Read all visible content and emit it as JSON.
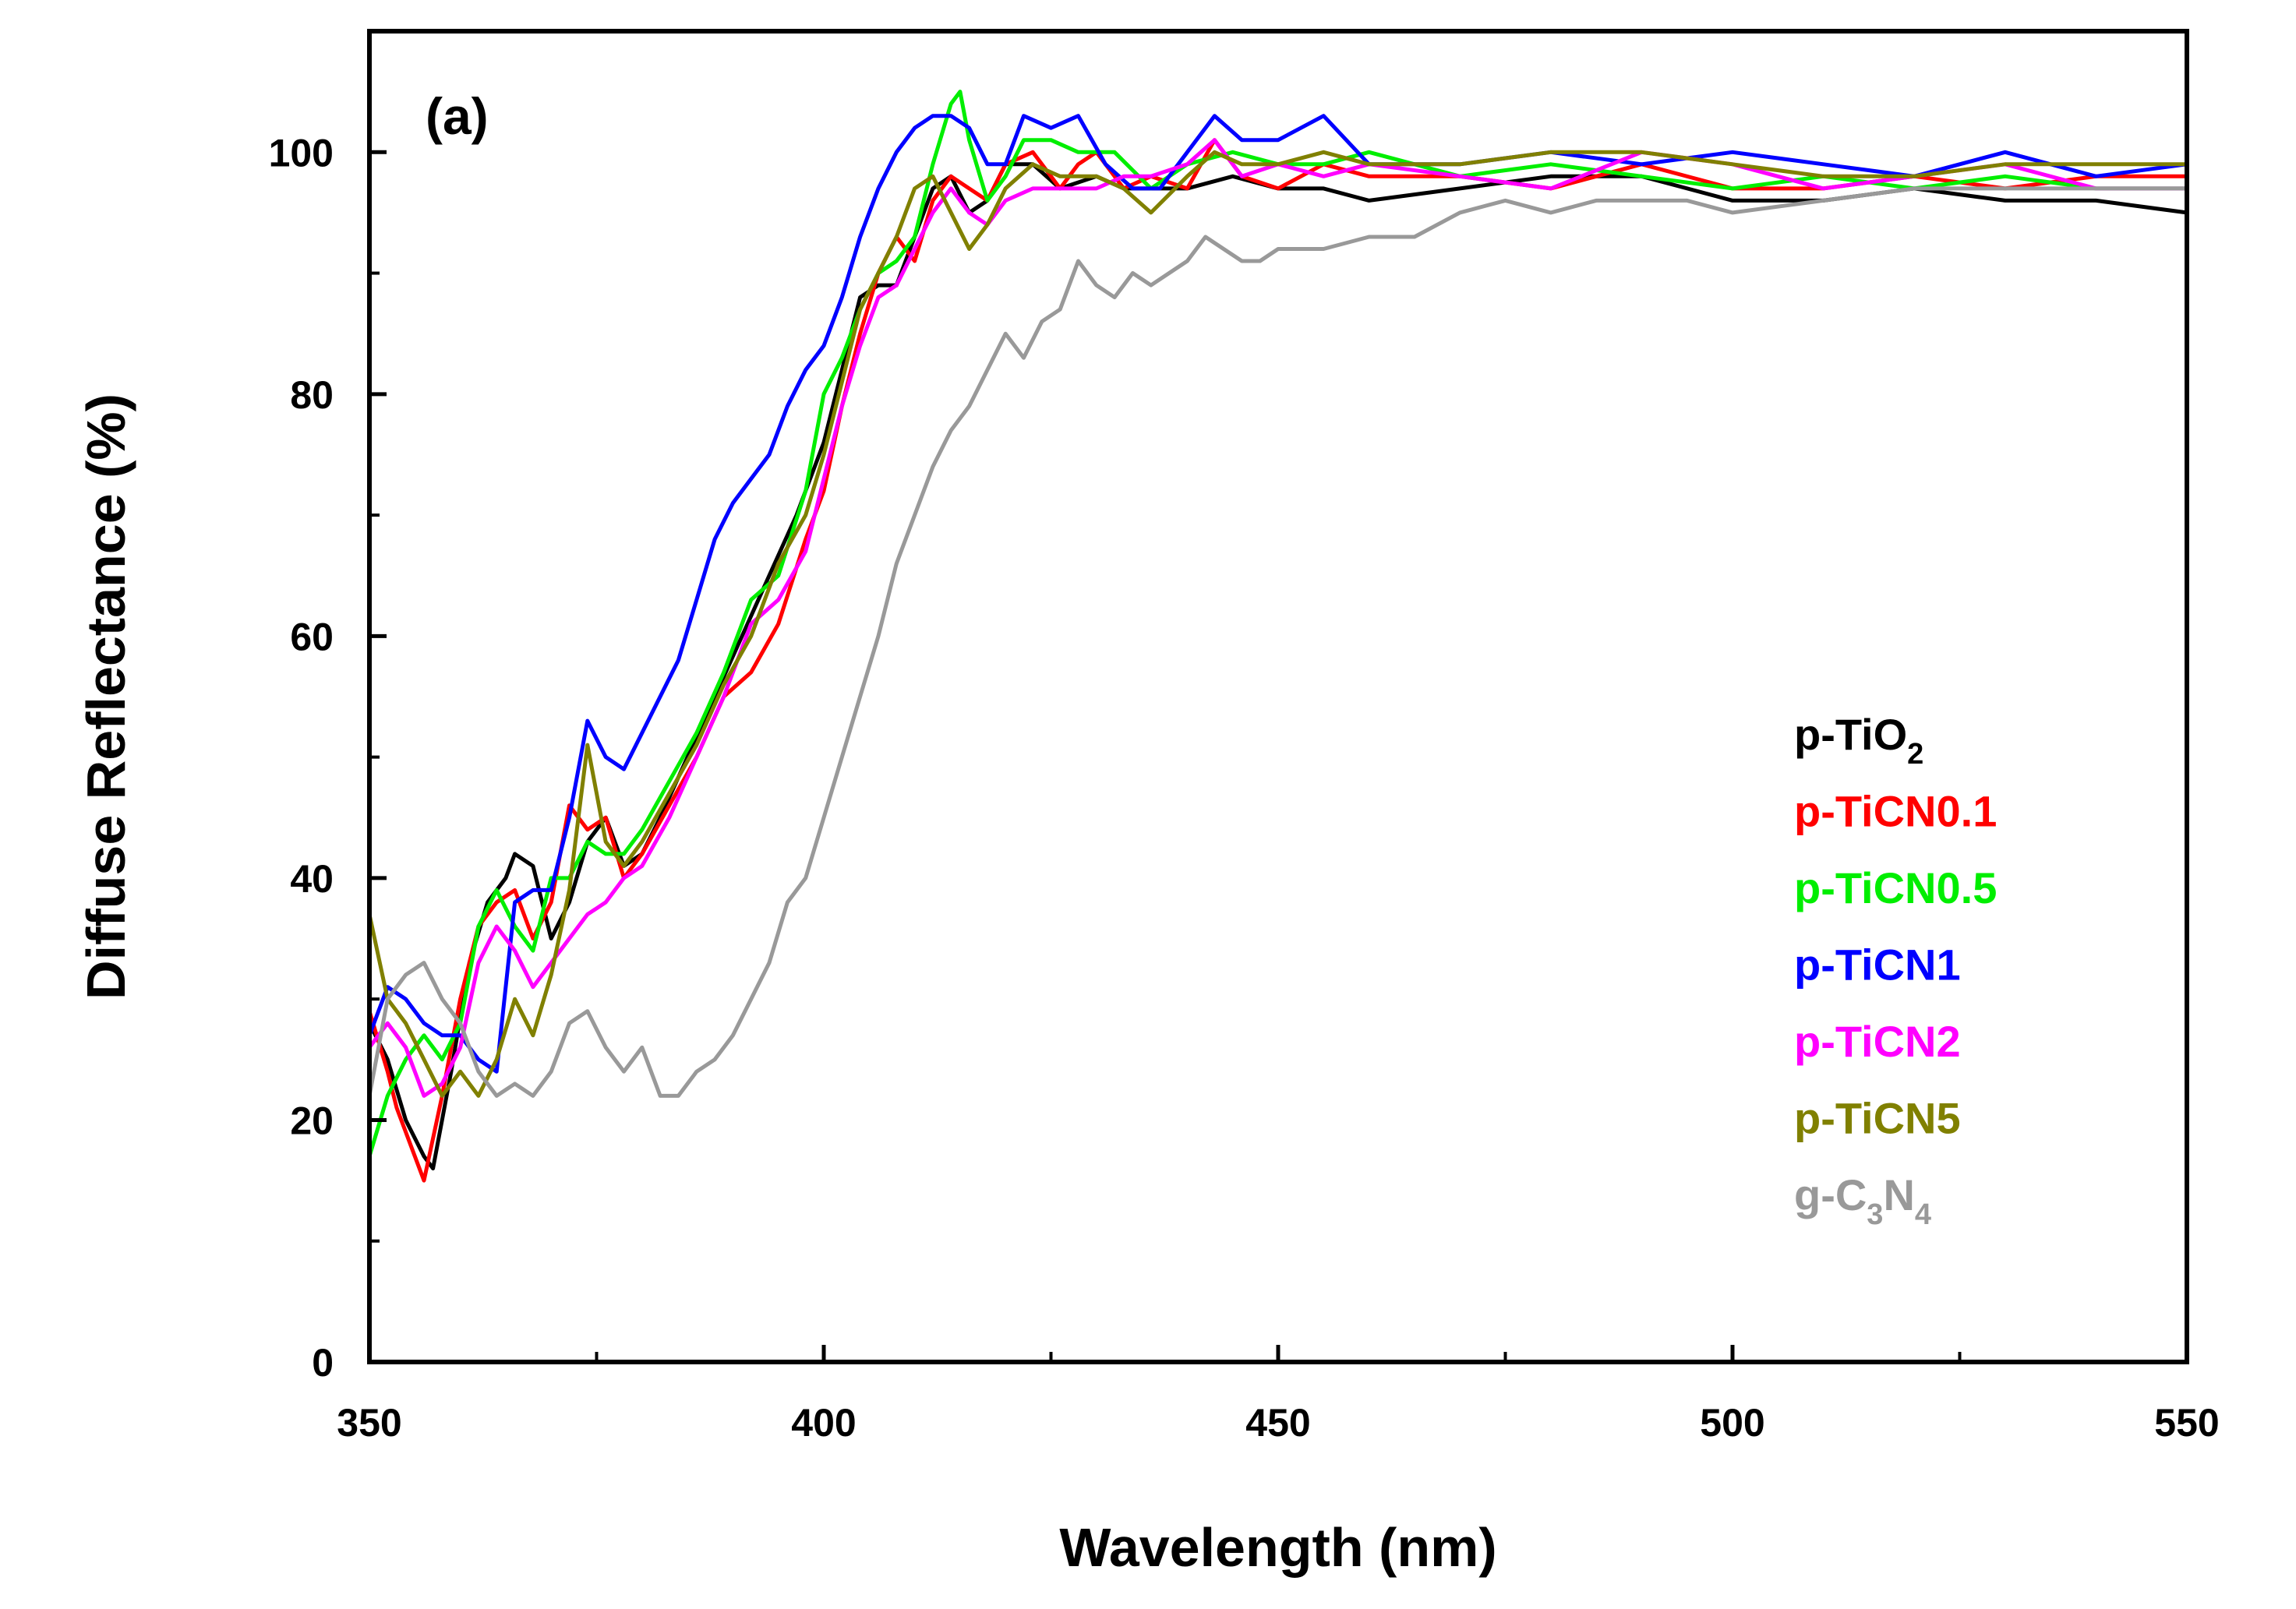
{
  "chart_data": {
    "type": "line",
    "panel_label": "(a)",
    "xlabel": "Wavelength (nm)",
    "ylabel": "Diffuse Reflectance (%)",
    "xlim": [
      350,
      550
    ],
    "ylim": [
      0,
      110
    ],
    "xticks": [
      350,
      400,
      450,
      500,
      550
    ],
    "yticks": [
      0,
      20,
      40,
      60,
      80,
      100
    ],
    "grid": false,
    "legend_position": "right",
    "series": [
      {
        "name": "p-TiO2",
        "legend": {
          "main": "p-TiO",
          "sub": "2",
          "tail": ""
        },
        "color": "#000000",
        "x": [
          350,
          352,
          354,
          356,
          357,
          359,
          361,
          363,
          365,
          366,
          368,
          370,
          372,
          374,
          376,
          378,
          380,
          382,
          385,
          388,
          391,
          394,
          397,
          400,
          402,
          404,
          406,
          408,
          410,
          412,
          414,
          416,
          418,
          420,
          423,
          426,
          430,
          433,
          436,
          440,
          445,
          450,
          455,
          460,
          470,
          480,
          490,
          500,
          510,
          520,
          530,
          540,
          550
        ],
        "y": [
          28,
          25,
          20,
          17,
          16,
          24,
          33,
          38,
          40,
          42,
          41,
          35,
          38,
          43,
          45,
          41,
          42,
          45,
          50,
          55,
          60,
          65,
          70,
          76,
          82,
          88,
          89,
          89,
          93,
          97,
          98,
          95,
          96,
          99,
          99,
          97,
          98,
          97,
          97,
          97,
          98,
          97,
          97,
          96,
          97,
          98,
          98,
          96,
          96,
          97,
          96,
          96,
          95
        ]
      },
      {
        "name": "p-TiCN0.1",
        "legend": {
          "main": "p-TiCN0.1",
          "sub": "",
          "tail": ""
        },
        "color": "#ff0000",
        "x": [
          350,
          352,
          353,
          355,
          356,
          358,
          360,
          362,
          364,
          366,
          368,
          370,
          372,
          374,
          376,
          378,
          380,
          383,
          386,
          389,
          392,
          395,
          398,
          400,
          402,
          404,
          406,
          408,
          410,
          412,
          414,
          416,
          418,
          420,
          423,
          426,
          428,
          430,
          433,
          436,
          440,
          443,
          446,
          450,
          455,
          460,
          470,
          480,
          490,
          500,
          510,
          520,
          530,
          540,
          550
        ],
        "y": [
          29,
          24,
          21,
          17,
          15,
          22,
          30,
          36,
          38,
          39,
          35,
          38,
          46,
          44,
          45,
          40,
          42,
          46,
          50,
          55,
          57,
          61,
          68,
          72,
          79,
          85,
          90,
          93,
          91,
          96,
          98,
          97,
          96,
          99,
          100,
          97,
          99,
          100,
          97,
          98,
          97,
          101,
          98,
          97,
          99,
          98,
          98,
          97,
          99,
          97,
          97,
          98,
          97,
          98,
          98
        ]
      },
      {
        "name": "p-TiCN0.5",
        "legend": {
          "main": "p-TiCN0.5",
          "sub": "",
          "tail": ""
        },
        "color": "#00ee00",
        "x": [
          350,
          352,
          354,
          356,
          358,
          360,
          362,
          364,
          366,
          368,
          370,
          372,
          374,
          376,
          378,
          380,
          383,
          386,
          389,
          392,
          395,
          398,
          400,
          402,
          404,
          406,
          408,
          410,
          412,
          414,
          415,
          416,
          418,
          420,
          422,
          425,
          428,
          432,
          436,
          440,
          445,
          450,
          455,
          460,
          470,
          480,
          490,
          500,
          510,
          520,
          530,
          540,
          550
        ],
        "y": [
          17,
          22,
          25,
          27,
          25,
          28,
          36,
          39,
          36,
          34,
          40,
          40,
          43,
          42,
          42,
          44,
          48,
          52,
          57,
          63,
          65,
          72,
          80,
          83,
          87,
          90,
          91,
          93,
          99,
          104,
          105,
          101,
          96,
          98,
          101,
          101,
          100,
          100,
          97,
          99,
          100,
          99,
          99,
          100,
          98,
          99,
          98,
          97,
          98,
          97,
          98,
          97,
          97
        ]
      },
      {
        "name": "p-TiCN1",
        "legend": {
          "main": "p-TiCN1",
          "sub": "",
          "tail": ""
        },
        "color": "#0000ff",
        "x": [
          350,
          352,
          354,
          356,
          358,
          360,
          362,
          364,
          366,
          368,
          370,
          372,
          374,
          376,
          378,
          380,
          382,
          384,
          386,
          388,
          390,
          392,
          394,
          396,
          398,
          400,
          402,
          404,
          406,
          408,
          410,
          412,
          414,
          416,
          418,
          420,
          422,
          425,
          428,
          431,
          434,
          437,
          440,
          443,
          446,
          450,
          455,
          460,
          470,
          480,
          490,
          500,
          510,
          520,
          530,
          540,
          550
        ],
        "y": [
          27,
          31,
          30,
          28,
          27,
          27,
          25,
          24,
          38,
          39,
          39,
          45,
          53,
          50,
          49,
          52,
          55,
          58,
          63,
          68,
          71,
          73,
          75,
          79,
          82,
          84,
          88,
          93,
          97,
          100,
          102,
          103,
          103,
          102,
          99,
          99,
          103,
          102,
          103,
          99,
          97,
          97,
          100,
          103,
          101,
          101,
          103,
          99,
          99,
          100,
          99,
          100,
          99,
          98,
          100,
          98,
          99
        ]
      },
      {
        "name": "p-TiCN2",
        "legend": {
          "main": "p-TiCN2",
          "sub": "",
          "tail": ""
        },
        "color": "#ff00ff",
        "x": [
          350,
          352,
          354,
          356,
          358,
          360,
          362,
          364,
          366,
          368,
          370,
          372,
          374,
          376,
          378,
          380,
          383,
          386,
          389,
          392,
          395,
          398,
          400,
          402,
          404,
          406,
          408,
          410,
          412,
          414,
          416,
          418,
          420,
          423,
          426,
          430,
          433,
          436,
          440,
          443,
          446,
          450,
          455,
          460,
          470,
          480,
          490,
          500,
          510,
          520,
          530,
          540,
          550
        ],
        "y": [
          26,
          28,
          26,
          22,
          23,
          26,
          33,
          36,
          34,
          31,
          33,
          35,
          37,
          38,
          40,
          41,
          45,
          50,
          55,
          61,
          63,
          67,
          73,
          79,
          84,
          88,
          89,
          92,
          95,
          97,
          95,
          94,
          96,
          97,
          97,
          97,
          98,
          98,
          99,
          101,
          98,
          99,
          98,
          99,
          98,
          97,
          100,
          99,
          97,
          98,
          99,
          97,
          97
        ]
      },
      {
        "name": "p-TiCN5",
        "legend": {
          "main": "p-TiCN5",
          "sub": "",
          "tail": ""
        },
        "color": "#808000",
        "x": [
          350,
          352,
          354,
          356,
          358,
          360,
          362,
          364,
          366,
          368,
          370,
          372,
          374,
          376,
          378,
          380,
          383,
          386,
          389,
          392,
          395,
          398,
          400,
          402,
          404,
          406,
          408,
          410,
          412,
          414,
          416,
          418,
          420,
          423,
          426,
          430,
          433,
          436,
          440,
          443,
          446,
          450,
          455,
          460,
          470,
          480,
          490,
          500,
          510,
          520,
          530,
          540,
          550
        ],
        "y": [
          37,
          30,
          28,
          25,
          22,
          24,
          22,
          25,
          30,
          27,
          32,
          39,
          51,
          43,
          41,
          43,
          47,
          51,
          56,
          60,
          66,
          70,
          75,
          81,
          87,
          90,
          93,
          97,
          98,
          95,
          92,
          94,
          97,
          99,
          98,
          98,
          97,
          95,
          98,
          100,
          99,
          99,
          100,
          99,
          99,
          100,
          100,
          99,
          98,
          98,
          99,
          99,
          99
        ]
      },
      {
        "name": "g-C3N4",
        "legend": {
          "main": "g-C",
          "sub": "3",
          "tail": "N",
          "sub2": "4"
        },
        "color": "#999999",
        "x": [
          350,
          352,
          354,
          356,
          358,
          360,
          362,
          364,
          366,
          368,
          370,
          372,
          374,
          376,
          378,
          380,
          382,
          384,
          386,
          388,
          390,
          392,
          394,
          396,
          398,
          400,
          402,
          404,
          406,
          408,
          410,
          412,
          414,
          416,
          418,
          420,
          422,
          424,
          426,
          428,
          430,
          432,
          434,
          436,
          438,
          440,
          442,
          444,
          446,
          448,
          450,
          455,
          460,
          465,
          470,
          475,
          480,
          485,
          490,
          495,
          500,
          510,
          520,
          530,
          540,
          550
        ],
        "y": [
          22,
          30,
          32,
          33,
          30,
          28,
          24,
          22,
          23,
          22,
          24,
          28,
          29,
          26,
          24,
          26,
          22,
          22,
          24,
          25,
          27,
          30,
          33,
          38,
          40,
          45,
          50,
          55,
          60,
          66,
          70,
          74,
          77,
          79,
          82,
          85,
          83,
          86,
          87,
          91,
          89,
          88,
          90,
          89,
          90,
          91,
          93,
          92,
          91,
          91,
          92,
          92,
          93,
          93,
          95,
          96,
          95,
          96,
          96,
          96,
          95,
          96,
          97,
          97,
          97,
          97
        ]
      }
    ]
  }
}
